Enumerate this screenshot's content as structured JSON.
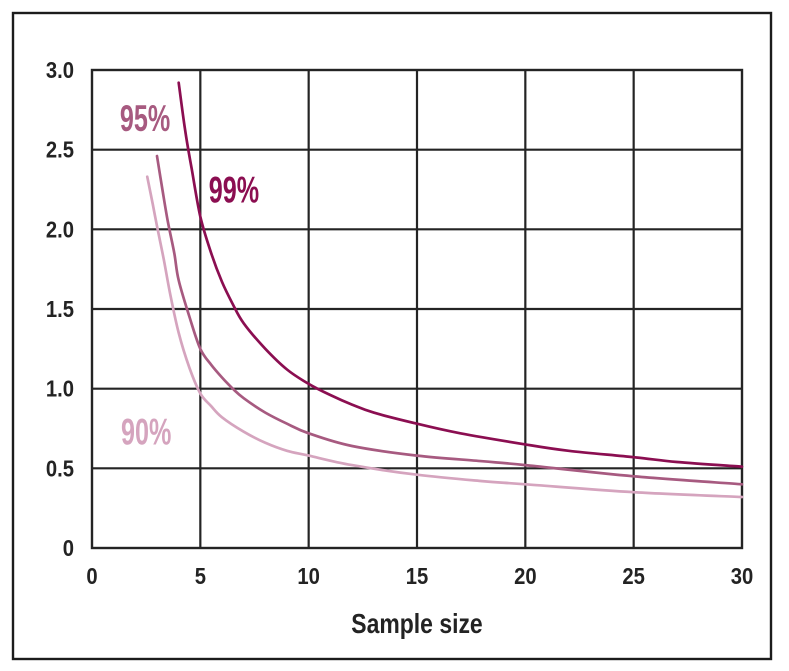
{
  "figure": {
    "background": "#ffffff",
    "border_color": "#1c1c1c"
  },
  "chart_data": {
    "type": "line",
    "title": "",
    "xlabel": "Sample size",
    "ylabel": "",
    "xlim": [
      0,
      30
    ],
    "ylim": [
      0,
      3
    ],
    "xticks": [
      0,
      5,
      10,
      15,
      20,
      25,
      30
    ],
    "xtick_labels": [
      "0",
      "5",
      "10",
      "15",
      "20",
      "25",
      "30"
    ],
    "yticks": [
      0,
      0.5,
      1,
      1.5,
      2,
      2.5,
      3
    ],
    "ytick_labels": [
      "0",
      "0.5",
      "1.0",
      "1.5",
      "2.0",
      "2.5",
      "3.0"
    ],
    "grid": true,
    "grid_color": "#242424",
    "axis_text_color": "#232323",
    "legend_position": "inline-annotations",
    "series": [
      {
        "name": "90%",
        "label": "90%",
        "color": "#D5A4BE",
        "label_at": [
          2.5,
          0.73
        ],
        "points": [
          [
            2.55,
            2.33
          ],
          [
            2.8,
            2.16
          ],
          [
            3,
            2.02
          ],
          [
            3.3,
            1.82
          ],
          [
            3.6,
            1.6
          ],
          [
            4,
            1.35
          ],
          [
            4.5,
            1.13
          ],
          [
            5,
            0.97
          ],
          [
            5.5,
            0.89
          ],
          [
            6,
            0.82
          ],
          [
            7,
            0.73
          ],
          [
            8,
            0.66
          ],
          [
            9,
            0.61
          ],
          [
            10,
            0.58
          ],
          [
            12,
            0.52
          ],
          [
            15,
            0.46
          ],
          [
            18,
            0.42
          ],
          [
            20,
            0.4
          ],
          [
            25,
            0.35
          ],
          [
            30,
            0.32
          ]
        ]
      },
      {
        "name": "95%",
        "label": "95%",
        "color": "#A75A80",
        "label_at": [
          2.45,
          2.7
        ],
        "points": [
          [
            3,
            2.46
          ],
          [
            3.25,
            2.25
          ],
          [
            3.5,
            2.05
          ],
          [
            3.8,
            1.85
          ],
          [
            4,
            1.68
          ],
          [
            4.5,
            1.45
          ],
          [
            5,
            1.25
          ],
          [
            5.5,
            1.15
          ],
          [
            6,
            1.07
          ],
          [
            6.5,
            1.0
          ],
          [
            7,
            0.94
          ],
          [
            8,
            0.85
          ],
          [
            9,
            0.78
          ],
          [
            10,
            0.72
          ],
          [
            12,
            0.64
          ],
          [
            15,
            0.58
          ],
          [
            18,
            0.545
          ],
          [
            20,
            0.52
          ],
          [
            25,
            0.45
          ],
          [
            30,
            0.4
          ]
        ]
      },
      {
        "name": "99%",
        "label": "99%",
        "color": "#8B0E51",
        "label_at": [
          6.55,
          2.25
        ],
        "points": [
          [
            4,
            2.92
          ],
          [
            4.3,
            2.62
          ],
          [
            4.6,
            2.38
          ],
          [
            5,
            2.08
          ],
          [
            5.5,
            1.85
          ],
          [
            6,
            1.67
          ],
          [
            6.5,
            1.53
          ],
          [
            7,
            1.41
          ],
          [
            8,
            1.25
          ],
          [
            9,
            1.12
          ],
          [
            10,
            1.03
          ],
          [
            11,
            0.96
          ],
          [
            12,
            0.9
          ],
          [
            13,
            0.85
          ],
          [
            15,
            0.78
          ],
          [
            17,
            0.72
          ],
          [
            20,
            0.65
          ],
          [
            22,
            0.61
          ],
          [
            25,
            0.57
          ],
          [
            27,
            0.54
          ],
          [
            30,
            0.51
          ]
        ]
      }
    ]
  }
}
